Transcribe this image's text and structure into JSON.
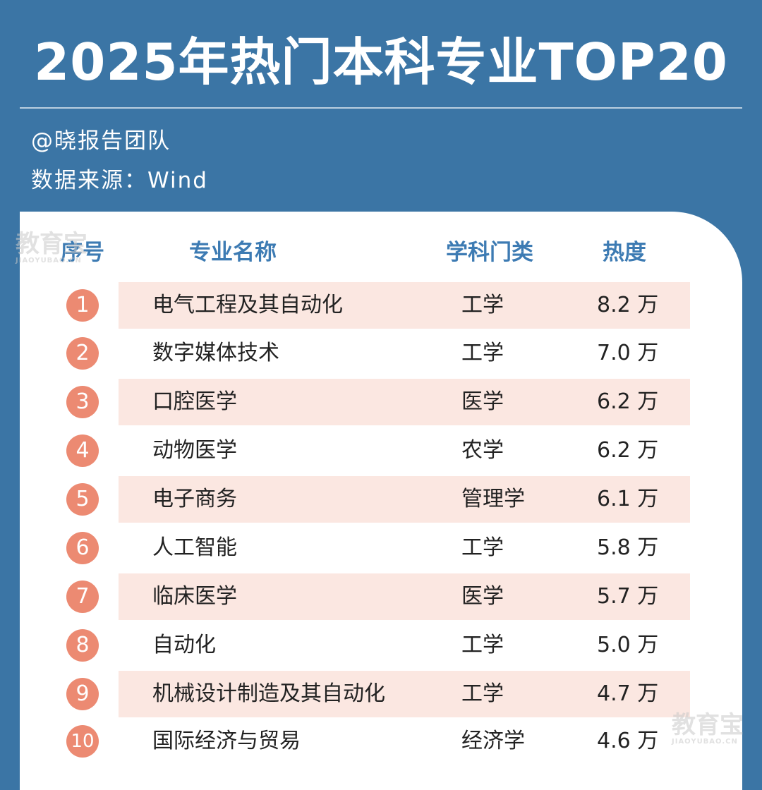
{
  "header": {
    "title": "2025年热门本科专业TOP20",
    "team": "@晓报告团队",
    "source": "数据来源：Wind"
  },
  "table": {
    "columns": [
      "序号",
      "专业名称",
      "学科门类",
      "热度"
    ],
    "rows": [
      {
        "rank": "1",
        "name": "电气工程及其自动化",
        "category": "工学",
        "heat": "8.2 万"
      },
      {
        "rank": "2",
        "name": "数字媒体技术",
        "category": "工学",
        "heat": "7.0 万"
      },
      {
        "rank": "3",
        "name": "口腔医学",
        "category": "医学",
        "heat": "6.2 万"
      },
      {
        "rank": "4",
        "name": "动物医学",
        "category": "农学",
        "heat": "6.2 万"
      },
      {
        "rank": "5",
        "name": "电子商务",
        "category": "管理学",
        "heat": "6.1 万"
      },
      {
        "rank": "6",
        "name": "人工智能",
        "category": "工学",
        "heat": "5.8 万"
      },
      {
        "rank": "7",
        "name": "临床医学",
        "category": "医学",
        "heat": "5.7 万"
      },
      {
        "rank": "8",
        "name": "自动化",
        "category": "工学",
        "heat": "5.0 万"
      },
      {
        "rank": "9",
        "name": "机械设计制造及其自动化",
        "category": "工学",
        "heat": "4.7 万"
      },
      {
        "rank": "10",
        "name": "国际经济与贸易",
        "category": "经济学",
        "heat": "4.6 万"
      }
    ]
  },
  "watermark": {
    "text": "教育宝",
    "domain": "JIAOYUBAO.CN"
  },
  "colors": {
    "background": "#3b75a5",
    "header_text": "#3d7bb3",
    "badge": "#ec8a72",
    "row_band": "#fbe7e1"
  }
}
